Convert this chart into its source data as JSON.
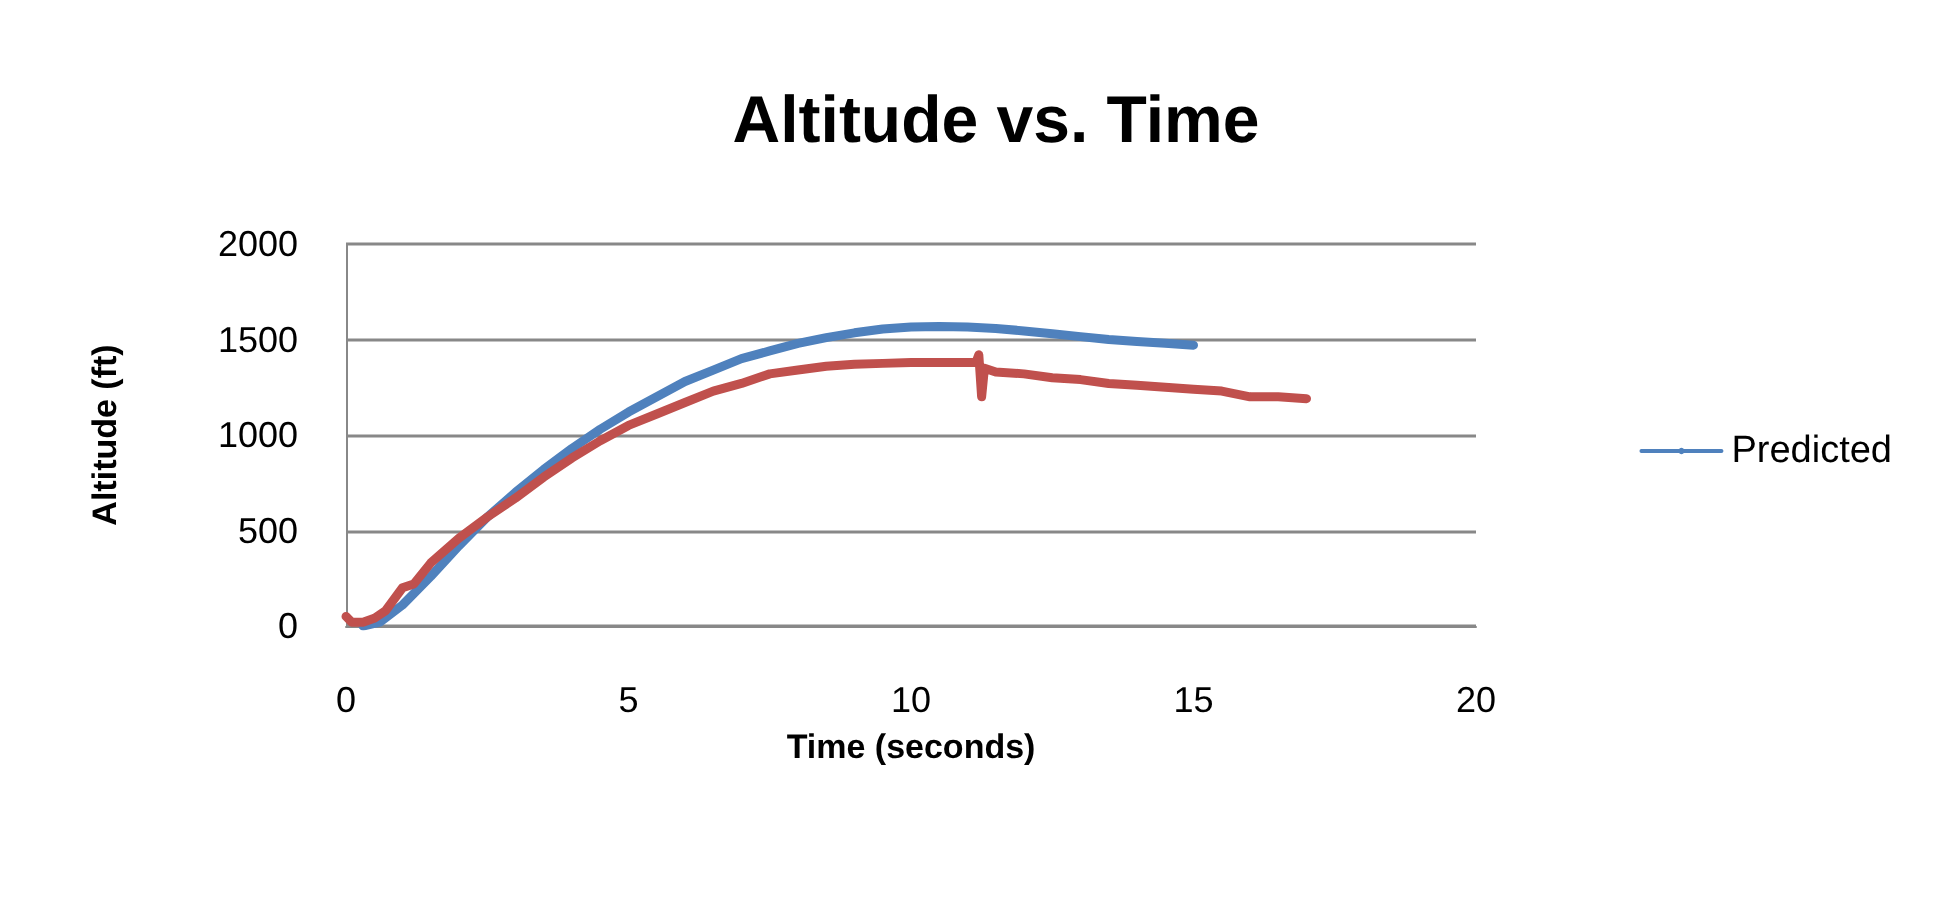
{
  "chart_data": {
    "type": "line",
    "title": "Altitude vs. Time",
    "xlabel": "Time (seconds)",
    "ylabel": "Altitude (ft)",
    "xlim": [
      0,
      20
    ],
    "xticks": [
      0,
      5,
      10,
      15,
      20
    ],
    "ylim": [
      0,
      2000
    ],
    "yticks": [
      0,
      500,
      1000,
      1500,
      2000
    ],
    "grid": "y",
    "legend": "right",
    "marker": "none",
    "line_style": "solid",
    "series": [
      {
        "name": "Predicted",
        "color": "#4f81bd",
        "x": [
          0.3,
          0.6,
          1,
          1.5,
          2,
          2.5,
          3,
          3.5,
          4,
          4.5,
          5,
          5.5,
          6,
          6.5,
          7,
          7.5,
          8,
          8.5,
          9,
          9.5,
          10,
          10.5,
          11,
          11.5,
          12,
          12.5,
          13,
          13.5,
          14,
          14.5,
          15
        ],
        "values": [
          0,
          20,
          110,
          260,
          420,
          570,
          700,
          820,
          930,
          1030,
          1120,
          1200,
          1280,
          1340,
          1400,
          1440,
          1480,
          1510,
          1535,
          1555,
          1565,
          1568,
          1565,
          1558,
          1545,
          1530,
          1515,
          1500,
          1490,
          1480,
          1470
        ]
      },
      {
        "color": "#c0504d",
        "x": [
          0,
          0.1,
          0.3,
          0.5,
          0.7,
          1,
          1.2,
          1.5,
          2,
          2.5,
          3,
          3.5,
          4,
          4.5,
          5,
          5.5,
          6,
          6.5,
          7,
          7.5,
          8,
          8.5,
          9,
          9.5,
          10,
          10.5,
          11,
          11.15,
          11.2,
          11.25,
          11.3,
          11.5,
          12,
          12.5,
          13,
          13.5,
          14,
          14.5,
          15,
          15.5,
          16,
          16.5,
          17
        ],
        "values": [
          50,
          20,
          20,
          40,
          80,
          200,
          220,
          330,
          460,
          570,
          670,
          780,
          880,
          970,
          1050,
          1110,
          1170,
          1230,
          1270,
          1320,
          1340,
          1360,
          1370,
          1375,
          1380,
          1380,
          1380,
          1380,
          1420,
          1200,
          1350,
          1330,
          1320,
          1300,
          1290,
          1270,
          1260,
          1250,
          1240,
          1230,
          1200,
          1200,
          1190
        ]
      }
    ]
  }
}
